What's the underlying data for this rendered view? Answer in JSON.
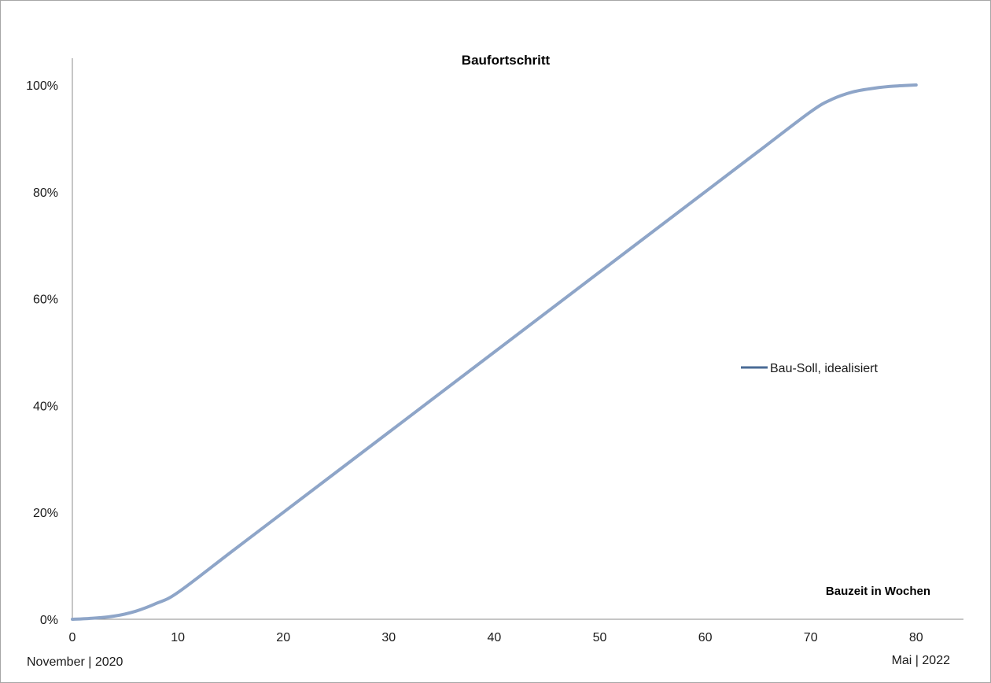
{
  "chart_data": {
    "type": "line",
    "title": "Baufortschritt",
    "xlabel": "Bauzeit in Wochen",
    "ylabel": "",
    "xlim": [
      0,
      85
    ],
    "ylim": [
      0,
      100
    ],
    "x_ticks": [
      0,
      10,
      20,
      30,
      40,
      50,
      60,
      70,
      80
    ],
    "y_ticks": [
      0,
      20,
      40,
      60,
      80,
      100
    ],
    "y_tick_labels": [
      "0%",
      "20%",
      "40%",
      "60%",
      "80%",
      "100%"
    ],
    "grid": false,
    "legend": {
      "position": "right",
      "entries": [
        "Bau-Soll, idealisiert"
      ]
    },
    "series": [
      {
        "name": "Bau-Soll, idealisiert",
        "color": "#8ea5c8",
        "x": [
          0,
          2,
          4,
          6,
          8,
          10,
          15,
          20,
          30,
          40,
          50,
          60,
          65,
          70,
          72,
          74,
          76,
          78,
          80
        ],
        "y": [
          0,
          0.2,
          0.6,
          1.5,
          3,
          5,
          12.5,
          20,
          35,
          50,
          65,
          80,
          87.5,
          95,
          97.3,
          98.7,
          99.4,
          99.8,
          100
        ]
      }
    ],
    "annotations": {
      "start": "November  | 2020",
      "end": "Mai | 2022"
    }
  }
}
